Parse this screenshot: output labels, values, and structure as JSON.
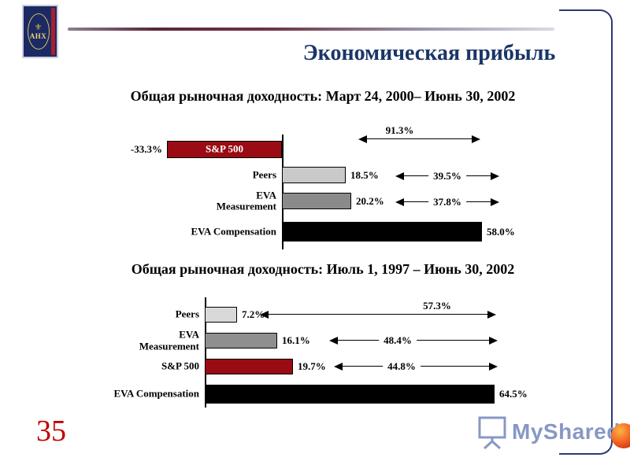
{
  "slide": {
    "title": "Экономическая прибыль",
    "page_number": "35"
  },
  "logo": {
    "text": "АНХ"
  },
  "watermark": {
    "text": "MyShared"
  },
  "chart_data": [
    {
      "type": "bar",
      "orientation": "horizontal",
      "title": "Общая рыночная доходность: Март 24, 2000– Июнь 30, 2002",
      "categories": [
        "S&P 500",
        "Peers",
        "EVA\nMeasurement",
        "EVA Compensation"
      ],
      "values": [
        -33.3,
        18.5,
        20.2,
        58.0
      ],
      "value_labels": [
        "-33.3%",
        "18.5%",
        "20.2%",
        "58.0%"
      ],
      "bar_colors": [
        "#9a0b13",
        "#c9c9c9",
        "#8a8a8a",
        "#000000"
      ],
      "annotations": [
        {
          "label": "91.3%"
        },
        {
          "label": "39.5%"
        },
        {
          "label": "37.8%"
        }
      ],
      "unit": "%",
      "xlim": [
        -35,
        62
      ],
      "axis_at": 0,
      "grid": false,
      "legend": false
    },
    {
      "type": "bar",
      "orientation": "horizontal",
      "title": "Общая рыночная доходность: Июль 1, 1997 – Июнь 30, 2002",
      "categories": [
        "Peers",
        "EVA\nMeasurement",
        "S&P 500",
        "EVA Compensation"
      ],
      "values": [
        7.2,
        16.1,
        19.7,
        64.5
      ],
      "value_labels": [
        "7.2%",
        "16.1%",
        "19.7%",
        "64.5%"
      ],
      "bar_colors": [
        "#d9d9d9",
        "#8f8f8f",
        "#9a0b13",
        "#000000"
      ],
      "annotations": [
        {
          "label": "57.3%"
        },
        {
          "label": "48.4%"
        },
        {
          "label": "44.8%"
        }
      ],
      "unit": "%",
      "xlim": [
        0,
        66
      ],
      "axis_at": 0,
      "grid": false,
      "legend": false
    }
  ]
}
